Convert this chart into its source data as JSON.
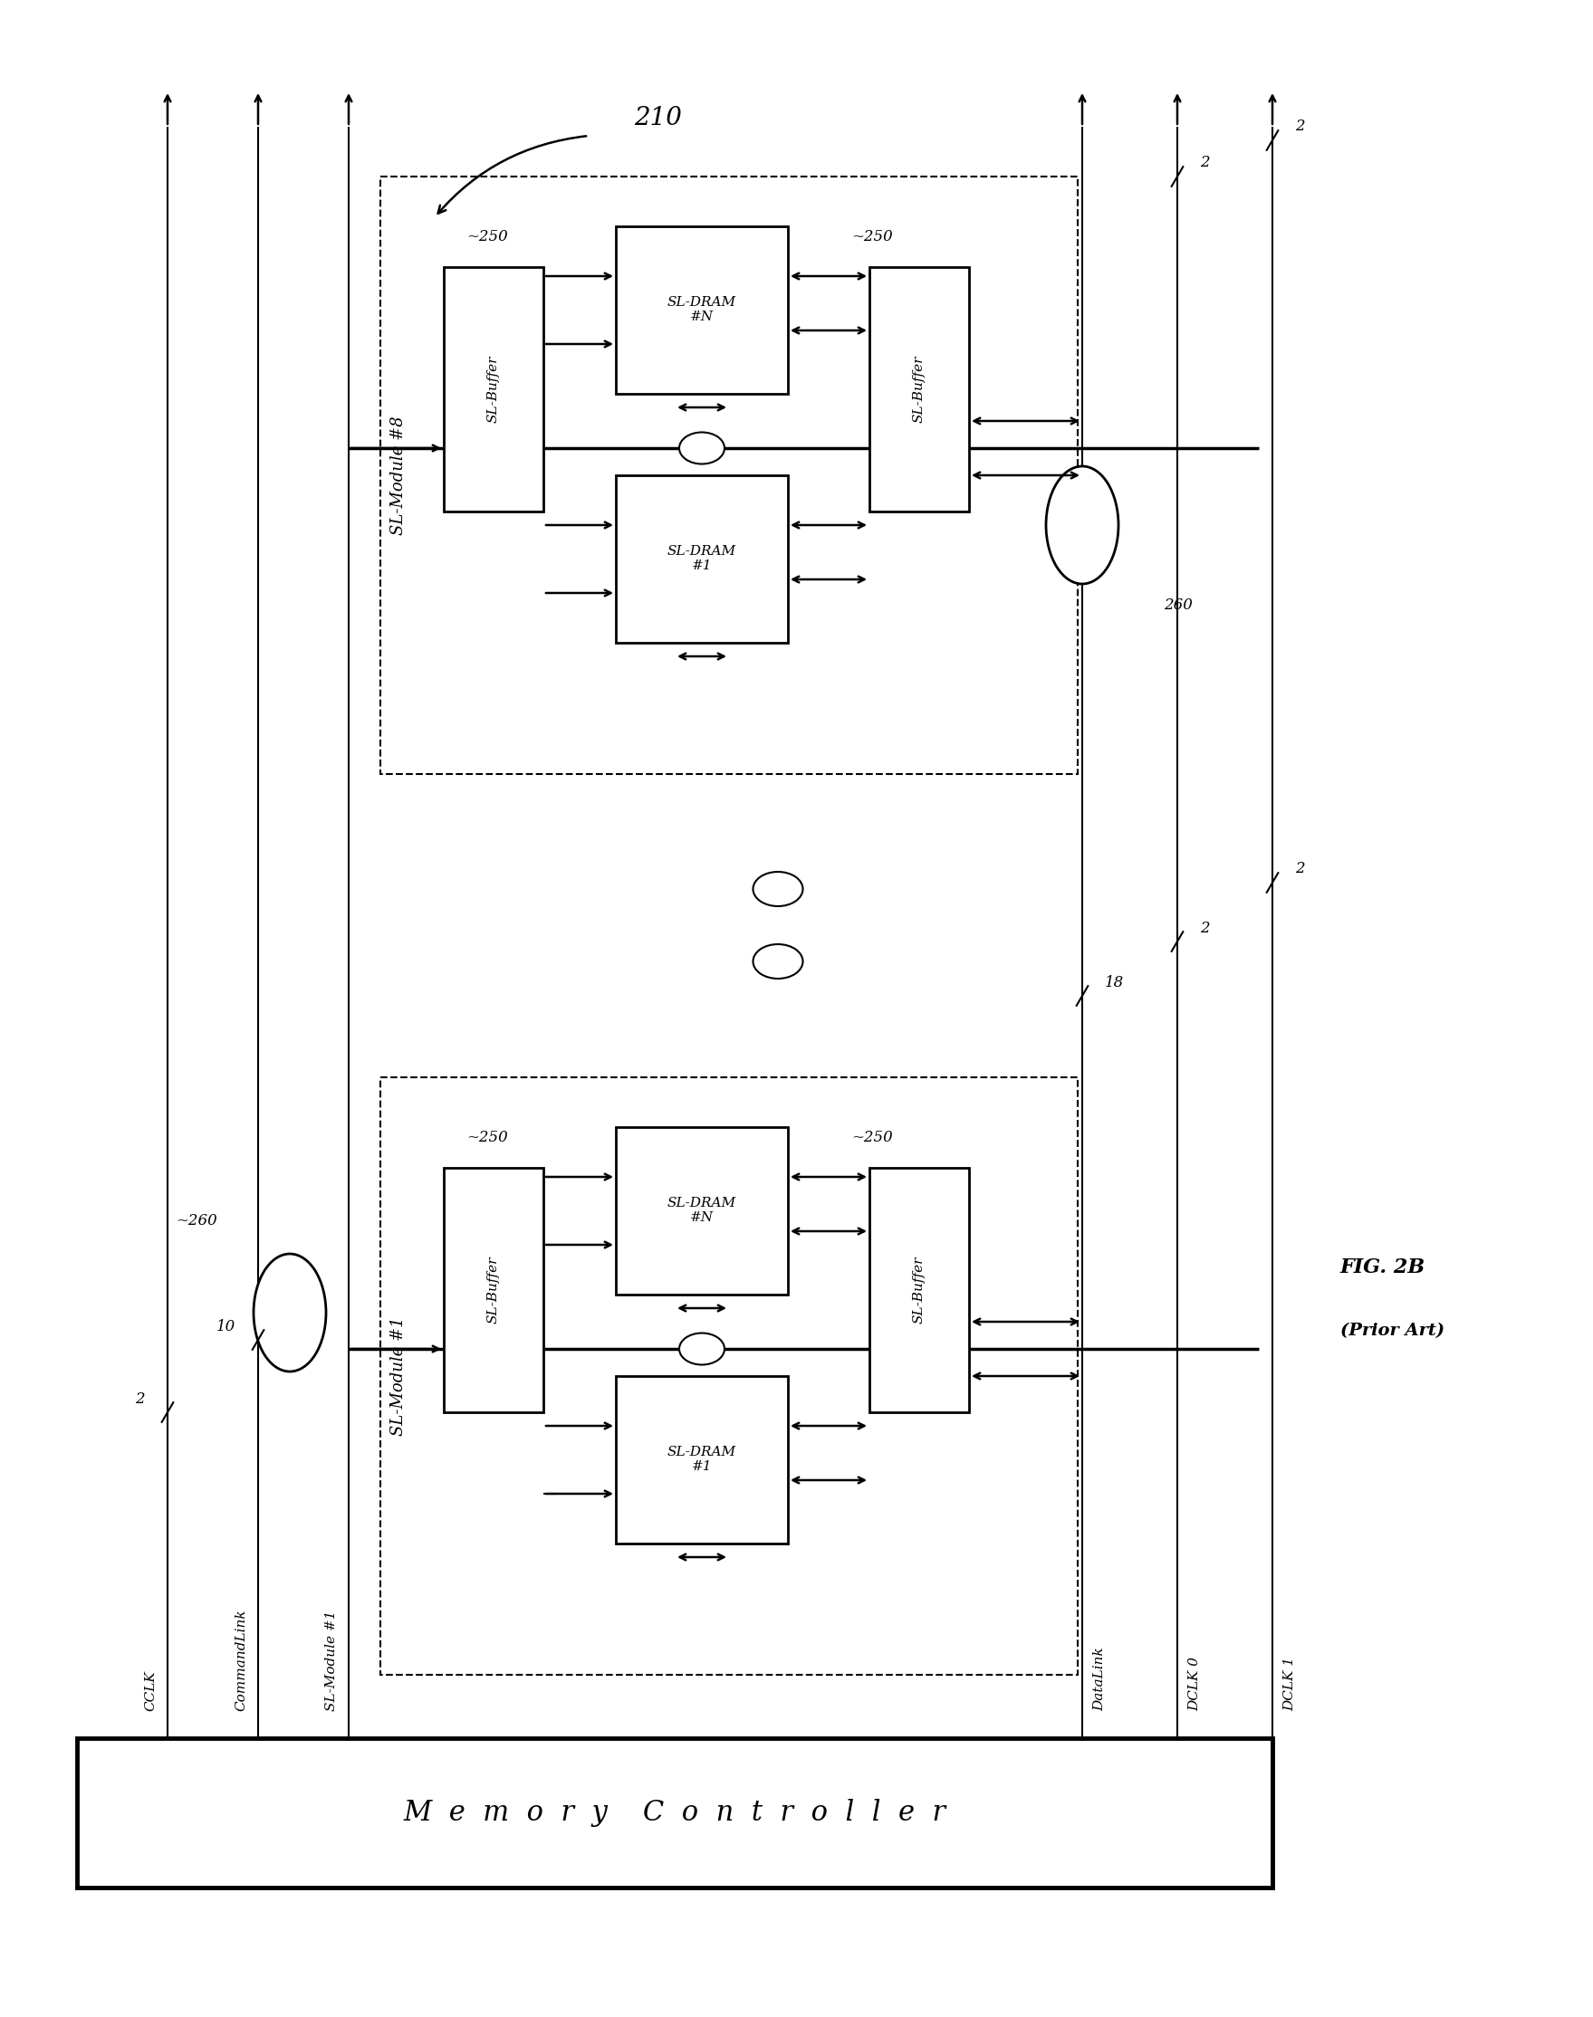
{
  "fig_width": 17.59,
  "fig_height": 22.28,
  "bg_color": "#ffffff",
  "title_fig": "FIG. 2B",
  "title_pa": "(Prior Art)",
  "mc_text": "M  e  m  o  r  y    C  o  n  t  r  o  l  l  e  r"
}
